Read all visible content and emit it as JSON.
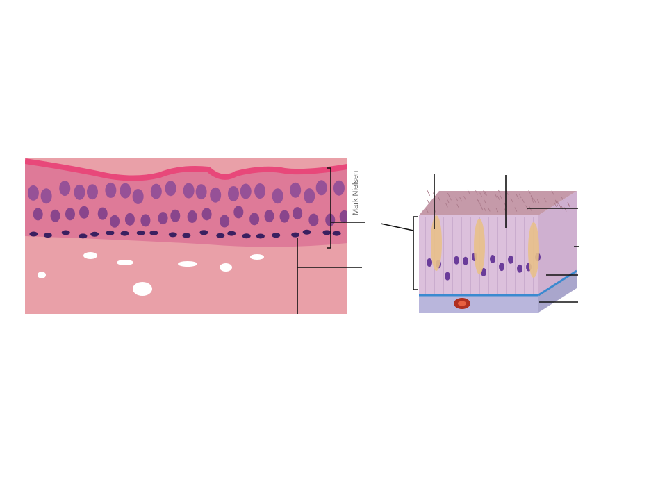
{
  "credit": "Mark Nielsen"
}
